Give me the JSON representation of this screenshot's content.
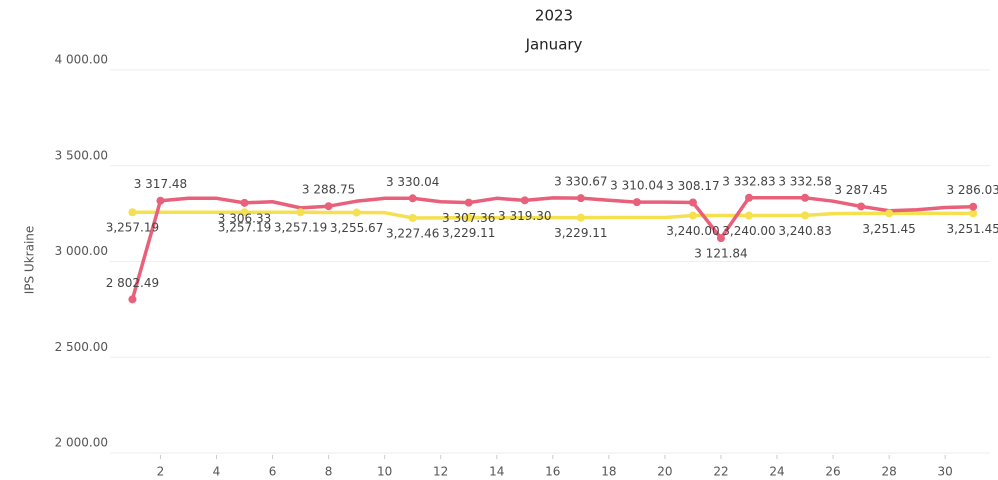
{
  "chart_data": {
    "type": "line",
    "title": "2023",
    "subtitle": "January",
    "y_label": "IPS Ukraine",
    "x": [
      1,
      2,
      3,
      4,
      5,
      6,
      7,
      8,
      9,
      10,
      11,
      12,
      13,
      14,
      15,
      16,
      17,
      18,
      19,
      20,
      21,
      22,
      23,
      24,
      25,
      26,
      27,
      28,
      29,
      30,
      31
    ],
    "xlim": [
      0.2,
      31.6
    ],
    "xticks": [
      2,
      4,
      6,
      8,
      10,
      12,
      14,
      16,
      18,
      20,
      22,
      24,
      26,
      28,
      30
    ],
    "ylim": [
      2000,
      4000
    ],
    "yticks": [
      {
        "value": 2000,
        "label": "2 000.00"
      },
      {
        "value": 2500,
        "label": "2 500.00"
      },
      {
        "value": 3000,
        "label": "3 000.00"
      },
      {
        "value": 3500,
        "label": "3 500.00"
      },
      {
        "value": 4000,
        "label": "4 000.00"
      }
    ],
    "grid": true,
    "series": [
      {
        "color": "#e8607a",
        "values": [
          2802.49,
          3317.48,
          3330,
          3330,
          3306.33,
          3312,
          3280,
          3288.75,
          3315,
          3330,
          3330.04,
          3312,
          3307.36,
          3330,
          3319.3,
          3332,
          3330.67,
          3320,
          3310.04,
          3310,
          3308.17,
          3121.84,
          3332.83,
          3333,
          3332.58,
          3315,
          3287.45,
          3265,
          3270,
          3282,
          3286.03
        ],
        "value_labels": [
          "2 802.49",
          "3 317.48",
          null,
          null,
          "3 306.33",
          null,
          null,
          "3 288.75",
          null,
          null,
          "3 330.04",
          null,
          "3 307.36",
          null,
          "3 319.30",
          null,
          "3 330.67",
          null,
          "3 310.04",
          null,
          "3 308.17",
          "3 121.84",
          "3 332.83",
          null,
          "3 332.58",
          null,
          "3 287.45",
          null,
          null,
          null,
          "3 286.03"
        ]
      },
      {
        "color": "#f5e04f",
        "values": [
          3257.19,
          3257.19,
          3257.19,
          3257.19,
          3257.19,
          3257.19,
          3257.19,
          3256,
          3255.67,
          3255,
          3227.46,
          3228,
          3229.11,
          3229.11,
          3229.11,
          3229.11,
          3229.11,
          3229.5,
          3229.5,
          3230,
          3240.0,
          3240,
          3240.0,
          3240,
          3240.83,
          3250,
          3251,
          3251.45,
          3251,
          3251,
          3251.45
        ],
        "value_labels": [
          "3,257.19",
          null,
          null,
          null,
          "3,257.19",
          null,
          "3,257.19",
          null,
          "3,255.67",
          null,
          "3,227.46",
          null,
          "3,229.11",
          null,
          null,
          null,
          "3,229.11",
          null,
          null,
          null,
          "3,240.00",
          null,
          "3,240.00",
          null,
          "3,240.83",
          null,
          null,
          "3,251.45",
          null,
          null,
          "3,251.45"
        ]
      }
    ]
  }
}
